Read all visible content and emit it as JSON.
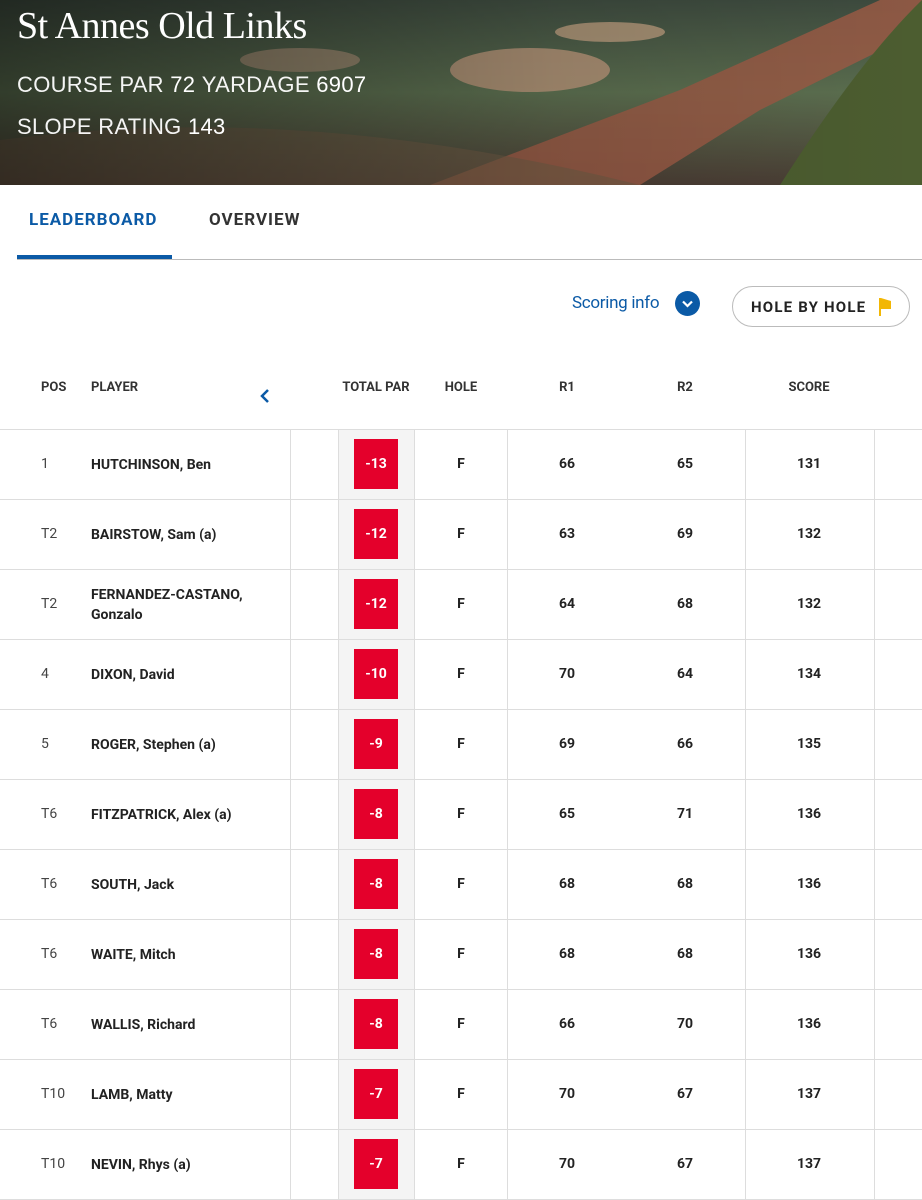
{
  "header": {
    "title": "St Annes Old Links",
    "par_label": "COURSE PAR",
    "par": "72",
    "yardage_label": "YARDAGE",
    "yardage": "6907",
    "slope_label": "SLOPE RATING",
    "slope": "143"
  },
  "tabs": [
    "LEADERBOARD",
    "OVERVIEW"
  ],
  "scoring_info": "Scoring info",
  "hole_by_hole": "HOLE BY HOLE",
  "table": {
    "columns": [
      "POS",
      "PLAYER",
      "TOTAL PAR",
      "HOLE",
      "R1",
      "R2",
      "SCORE"
    ],
    "rows": [
      [
        "1",
        "HUTCHINSON, Ben",
        "-13",
        "F",
        "66",
        "65",
        "131"
      ],
      [
        "T2",
        "BAIRSTOW, Sam (a)",
        "-12",
        "F",
        "63",
        "69",
        "132"
      ],
      [
        "T2",
        "FERNANDEZ-CASTANO, Gonzalo",
        "-12",
        "F",
        "64",
        "68",
        "132"
      ],
      [
        "4",
        "DIXON, David",
        "-10",
        "F",
        "70",
        "64",
        "134"
      ],
      [
        "5",
        "ROGER, Stephen (a)",
        "-9",
        "F",
        "69",
        "66",
        "135"
      ],
      [
        "T6",
        "FITZPATRICK, Alex (a)",
        "-8",
        "F",
        "65",
        "71",
        "136"
      ],
      [
        "T6",
        "SOUTH, Jack",
        "-8",
        "F",
        "68",
        "68",
        "136"
      ],
      [
        "T6",
        "WAITE, Mitch",
        "-8",
        "F",
        "68",
        "68",
        "136"
      ],
      [
        "T6",
        "WALLIS, Richard",
        "-8",
        "F",
        "66",
        "70",
        "136"
      ],
      [
        "T10",
        "LAMB, Matty",
        "-7",
        "F",
        "70",
        "67",
        "137"
      ],
      [
        "T10",
        "NEVIN, Rhys (a)",
        "-7",
        "F",
        "70",
        "67",
        "137"
      ]
    ]
  }
}
